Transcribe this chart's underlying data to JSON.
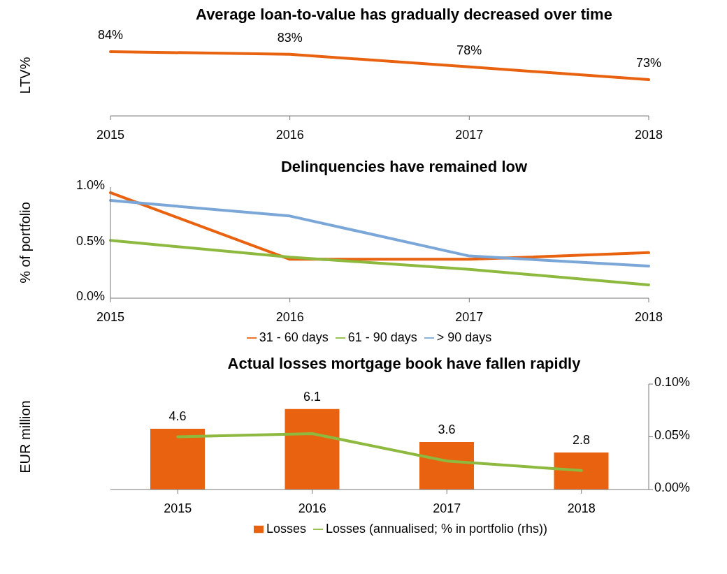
{
  "chart_data": [
    {
      "type": "line",
      "title": "Average loan-to-value has gradually decreased over time",
      "ylabel": "LTV%",
      "categories": [
        "2015",
        "2016",
        "2017",
        "2018"
      ],
      "tick_labels": "x",
      "series": [
        {
          "color": "#e8620f",
          "values": [
            84,
            83,
            78,
            73
          ],
          "value_labels": [
            "84%",
            "83%",
            "78%",
            "73%"
          ]
        }
      ],
      "legend": false
    },
    {
      "type": "line",
      "title": "Delinquencies have remained low",
      "ylabel": "% of portfolio",
      "categories": [
        "2015",
        "2016",
        "2017",
        "2018"
      ],
      "ylim": [
        0,
        1
      ],
      "yticks": [
        {
          "value": 0,
          "label": "0.0%"
        },
        {
          "value": 0.5,
          "label": "0.5%"
        },
        {
          "value": 1,
          "label": "1.0%"
        }
      ],
      "series": [
        {
          "name": "31 - 60 days",
          "color": "#e8620f",
          "values": [
            0.95,
            0.35,
            0.35,
            0.41
          ]
        },
        {
          "name": "61 - 90 days",
          "color": "#8db93e",
          "values": [
            0.52,
            0.37,
            0.26,
            0.12
          ]
        },
        {
          "name": "> 90 days",
          "color": "#7ba7d8",
          "values": [
            0.88,
            0.74,
            0.38,
            0.29
          ]
        }
      ],
      "legend": "bottom"
    },
    {
      "type": "bar",
      "title": "Actual losses mortgage book have fallen rapidly",
      "ylabel": "EUR million",
      "categories": [
        "2015",
        "2016",
        "2017",
        "2018"
      ],
      "y2lim": [
        0,
        0.1
      ],
      "y2ticks": [
        {
          "value": 0,
          "label": "0.00%"
        },
        {
          "value": 0.05,
          "label": "0.05%"
        },
        {
          "value": 0.1,
          "label": "0.10%"
        }
      ],
      "series": [
        {
          "name": "Losses",
          "color": "#e8620f",
          "values": [
            4.6,
            6.1,
            3.6,
            2.8
          ],
          "value_labels": [
            "4.6",
            "6.1",
            "3.6",
            "2.8"
          ]
        },
        {
          "name": "Losses (annualised; % in portfolio (rhs))",
          "type": "line",
          "axis": "y2",
          "color": "#8db93e",
          "values": [
            0.05,
            0.053,
            0.027,
            0.018
          ]
        }
      ],
      "legend": "bottom"
    }
  ]
}
